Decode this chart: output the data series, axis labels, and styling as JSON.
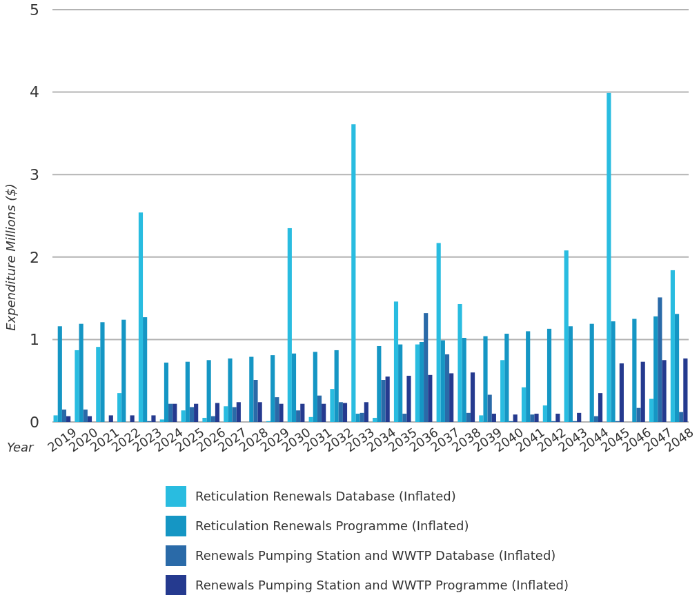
{
  "chart_data": {
    "type": "bar",
    "xlabel": "Year",
    "ylabel": "Expenditure Millions ($)",
    "categories": [
      "2019",
      "2020",
      "2021",
      "2022",
      "2023",
      "2024",
      "2025",
      "2026",
      "2027",
      "2028",
      "2029",
      "2030",
      "2031",
      "2032",
      "2033",
      "2034",
      "2035",
      "2036",
      "2037",
      "2038",
      "2039",
      "2040",
      "2041",
      "2042",
      "2043",
      "2044",
      "2045",
      "2046",
      "2047",
      "2048"
    ],
    "series": [
      {
        "name": "Reticulation Renewals Database (Inflated)",
        "color": "#29bce0",
        "values": [
          0.08,
          0.87,
          0.91,
          0.35,
          2.54,
          0.03,
          0.14,
          0.05,
          0.19,
          0,
          0.01,
          2.35,
          0.06,
          0.4,
          3.61,
          0.05,
          1.46,
          0.94,
          2.17,
          1.43,
          0.08,
          0.75,
          0.42,
          0.2,
          2.08,
          0,
          3.99,
          0,
          0.28,
          1.84
        ]
      },
      {
        "name": "Reticulation Renewals Programme (Inflated)",
        "color": "#1596c4",
        "values": [
          1.16,
          1.19,
          1.21,
          1.24,
          1.27,
          0.72,
          0.73,
          0.75,
          0.77,
          0.79,
          0.81,
          0.83,
          0.85,
          0.87,
          0.1,
          0.92,
          0.94,
          0.97,
          0.99,
          1.02,
          1.04,
          1.07,
          1.1,
          1.13,
          1.16,
          1.19,
          1.22,
          1.25,
          1.28,
          1.31
        ]
      },
      {
        "name": "Renewals Pumping Station and WWTP Database (Inflated)",
        "color": "#2a6aa8",
        "values": [
          0.15,
          0.15,
          0,
          0,
          0.01,
          0.22,
          0.18,
          0.07,
          0.18,
          0.51,
          0.3,
          0.14,
          0.32,
          0.24,
          0.11,
          0.51,
          0.1,
          1.32,
          0.82,
          0.11,
          0.33,
          0.01,
          0.09,
          0.01,
          0.01,
          0.07,
          0.01,
          0.17,
          1.51,
          0.12
        ]
      },
      {
        "name": "Renewals Pumping Station and WWTP Programme (Inflated)",
        "color": "#253a8f",
        "values": [
          0.07,
          0.07,
          0.08,
          0.08,
          0.08,
          0.22,
          0.22,
          0.23,
          0.24,
          0.24,
          0.22,
          0.22,
          0.22,
          0.23,
          0.24,
          0.55,
          0.56,
          0.57,
          0.59,
          0.6,
          0.1,
          0.09,
          0.1,
          0.1,
          0.11,
          0.35,
          0.71,
          0.73,
          0.75,
          0.77
        ]
      }
    ],
    "ylim": [
      0,
      5
    ],
    "yticks": [
      0,
      1,
      2,
      3,
      4,
      5
    ],
    "grid": "y",
    "legend": "bottom"
  }
}
